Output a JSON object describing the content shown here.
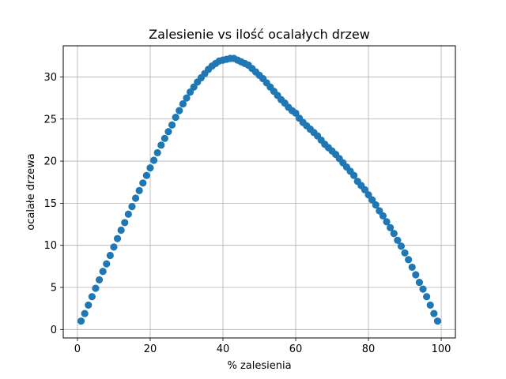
{
  "colors": {
    "series": "#1f77b4",
    "grid": "#b0b0b0",
    "axis": "#000000"
  },
  "chart_data": {
    "type": "scatter",
    "title": "Zalesienie vs ilość ocalałych drzew",
    "xlabel": "% zalesienia",
    "ylabel": "ocalałe drzewa",
    "xlim": [
      -3.9,
      103.9
    ],
    "ylim": [
      -1.0,
      33.7
    ],
    "grid": true,
    "xticks": [
      0,
      20,
      40,
      60,
      80,
      100
    ],
    "xtick_labels": [
      "0",
      "20",
      "40",
      "60",
      "80",
      "100"
    ],
    "yticks": [
      0,
      5,
      10,
      15,
      20,
      25,
      30
    ],
    "ytick_labels": [
      "0",
      "5",
      "10",
      "15",
      "20",
      "25",
      "30"
    ],
    "marker": "circle",
    "series": [
      {
        "x": [
          1,
          2,
          3,
          4,
          5,
          6,
          7,
          8,
          9,
          10,
          11,
          12,
          13,
          14,
          15,
          16,
          17,
          18,
          19,
          20,
          21,
          22,
          23,
          24,
          25,
          26,
          27,
          28,
          29,
          30,
          31,
          32,
          33,
          34,
          35,
          36,
          37,
          38,
          39,
          40,
          41,
          42,
          43,
          44,
          45,
          46,
          47,
          48,
          49,
          50,
          51,
          52,
          53,
          54,
          55,
          56,
          57,
          58,
          59,
          60,
          61,
          62,
          63,
          64,
          65,
          66,
          67,
          68,
          69,
          70,
          71,
          72,
          73,
          74,
          75,
          76,
          77,
          78,
          79,
          80,
          81,
          82,
          83,
          84,
          85,
          86,
          87,
          88,
          89,
          90,
          91,
          92,
          93,
          94,
          95,
          96,
          97,
          98,
          99
        ],
        "y": [
          1.0,
          1.9,
          2.9,
          3.9,
          4.9,
          5.9,
          6.9,
          7.8,
          8.8,
          9.8,
          10.8,
          11.8,
          12.7,
          13.7,
          14.6,
          15.6,
          16.5,
          17.4,
          18.3,
          19.2,
          20.1,
          21.0,
          21.9,
          22.7,
          23.5,
          24.3,
          25.2,
          26.0,
          26.8,
          27.5,
          28.2,
          28.8,
          29.4,
          29.9,
          30.4,
          30.9,
          31.3,
          31.6,
          31.9,
          32.0,
          32.1,
          32.2,
          32.2,
          32.0,
          31.8,
          31.6,
          31.4,
          31.0,
          30.6,
          30.2,
          29.8,
          29.3,
          28.8,
          28.3,
          27.8,
          27.3,
          26.9,
          26.4,
          26.0,
          25.7,
          25.1,
          24.6,
          24.2,
          23.8,
          23.4,
          23.0,
          22.5,
          22.0,
          21.6,
          21.2,
          20.8,
          20.3,
          19.8,
          19.3,
          18.8,
          18.3,
          17.6,
          17.1,
          16.6,
          16.0,
          15.4,
          14.8,
          14.1,
          13.5,
          12.8,
          12.1,
          11.4,
          10.6,
          9.9,
          9.1,
          8.3,
          7.4,
          6.5,
          5.6,
          4.8,
          3.9,
          2.9,
          1.9,
          1.0
        ]
      }
    ]
  }
}
